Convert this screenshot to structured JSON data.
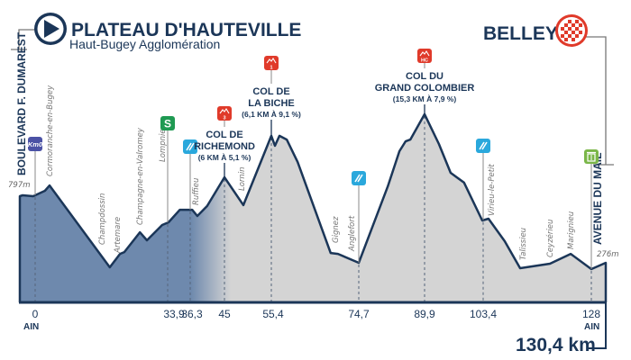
{
  "start": {
    "town": "PLATEAU D'HAUTEVILLE",
    "sponsor": "Haut-Bugey Agglomération",
    "street": "BOULEVARD F. DUMAREST",
    "altitude": "797m",
    "department": "AIN",
    "icon": "start-play-icon"
  },
  "finish": {
    "town": "BELLEY",
    "street": "AVENUE DU MAIL",
    "altitude": "276m",
    "department": "AIN",
    "total_distance": "130,4 km",
    "icon": "checkered-flag-icon"
  },
  "colors": {
    "line": "#1b3658",
    "fill_start": "#6e89ad",
    "fill_rest": "#d4d4d4",
    "climb": "#e03a2a",
    "feed": "#2aa8dc",
    "sprint": "#1f9a52",
    "km0": "#4b52a5",
    "waste": "#7ab648"
  },
  "climbs": [
    {
      "name_1": "COL DE",
      "name_2": "RICHEMOND",
      "detail": "(6 KM À 5,1 %)",
      "category": "3",
      "km": 45
    },
    {
      "name_1": "COL DE",
      "name_2": "LA BICHE",
      "detail": "(6,1 KM À 9,1 %)",
      "category": "1",
      "km": 55.4
    },
    {
      "name_1": "COL DU",
      "name_2": "GRAND COLOMBIER",
      "detail": "(15,3 KM À 7,9 %)",
      "category": "HC",
      "km": 89.9
    }
  ],
  "markers": [
    {
      "type": "km0",
      "label": "Km0",
      "km": 0
    },
    {
      "type": "sprint",
      "label": "S",
      "km": 33.9
    },
    {
      "type": "feed",
      "km": 36.3
    },
    {
      "type": "feed",
      "km": 74.7
    },
    {
      "type": "feed",
      "km": 103.4
    },
    {
      "type": "waste",
      "km": 128
    }
  ],
  "towns": [
    "Cormoranche-en-Bugey",
    "Champdossin",
    "Artemare",
    "Champagne-en-Valromey",
    "Lompnieu",
    "Ruffieu",
    "Lornin",
    "Gignez",
    "Anglefort",
    "Virieu-le-Petit",
    "Talissieu",
    "Ceyzérieu",
    "Marignieu"
  ],
  "chart_data": {
    "type": "area",
    "title": "",
    "xlabel": "",
    "ylabel": "",
    "x_unit": "km",
    "y_unit": "m",
    "grid": false,
    "x_tick_labels": [
      "0",
      "33,9",
      "36,3",
      "45",
      "55,4",
      "74,7",
      "89,9",
      "103,4",
      "128"
    ],
    "x_ticks": [
      0,
      33.9,
      36.3,
      45,
      55.4,
      74.7,
      89.9,
      103.4,
      128
    ],
    "points": [
      [
        -3.9,
        797
      ],
      [
        -3.2,
        804
      ],
      [
        -0.5,
        797
      ],
      [
        2.5,
        839
      ],
      [
        3.7,
        881
      ],
      [
        19.1,
        241
      ],
      [
        21.7,
        346
      ],
      [
        22.8,
        360
      ],
      [
        26.8,
        515
      ],
      [
        28.6,
        452
      ],
      [
        32.5,
        572
      ],
      [
        34.0,
        593
      ],
      [
        35.2,
        691
      ],
      [
        36.8,
        691
      ],
      [
        38.1,
        642
      ],
      [
        40.6,
        720
      ],
      [
        45,
        945
      ],
      [
        49.2,
        727
      ],
      [
        55.4,
        1269
      ],
      [
        56.2,
        1191
      ],
      [
        57.2,
        1269
      ],
      [
        58.8,
        1240
      ],
      [
        61.2,
        1064
      ],
      [
        68.5,
        353
      ],
      [
        70.1,
        346
      ],
      [
        74.7,
        276
      ],
      [
        81.4,
        874
      ],
      [
        84.1,
        1149
      ],
      [
        85.5,
        1226
      ],
      [
        86.6,
        1240
      ],
      [
        89.9,
        1438
      ],
      [
        93.2,
        1205
      ],
      [
        95.9,
        980
      ],
      [
        99.0,
        903
      ],
      [
        103.2,
        607
      ],
      [
        104.6,
        621
      ],
      [
        108.3,
        445
      ],
      [
        111.8,
        234
      ],
      [
        118.6,
        269
      ],
      [
        123.3,
        346
      ],
      [
        128,
        227
      ],
      [
        130.4,
        276
      ]
    ]
  }
}
